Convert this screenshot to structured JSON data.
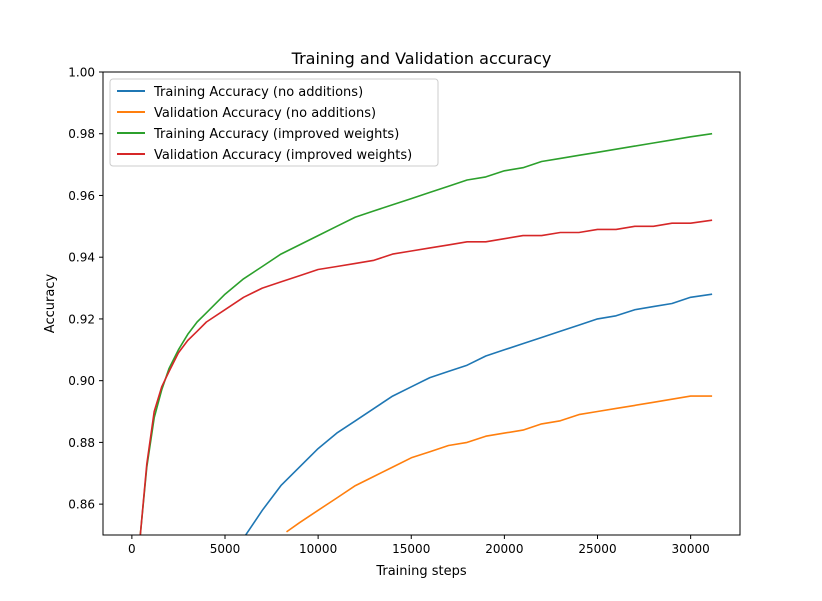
{
  "chart_data": {
    "type": "line",
    "title": "Training and Validation accuracy",
    "xlabel": "Training steps",
    "ylabel": "Accuracy",
    "xlim": [
      -1550,
      32650
    ],
    "ylim": [
      0.85,
      1.0
    ],
    "xticks": [
      0,
      5000,
      10000,
      15000,
      20000,
      25000,
      30000
    ],
    "xtick_labels": [
      "0",
      "5000",
      "10000",
      "15000",
      "20000",
      "25000",
      "30000"
    ],
    "yticks": [
      0.86,
      0.88,
      0.9,
      0.92,
      0.94,
      0.96,
      0.98,
      1.0
    ],
    "ytick_labels": [
      "0.86",
      "0.88",
      "0.90",
      "0.92",
      "0.94",
      "0.96",
      "0.98",
      "1.00"
    ],
    "grid": false,
    "legend_position": "upper-left",
    "series": [
      {
        "name": "Training Accuracy (no additions)",
        "color": "#1f77b4",
        "x": [
          6000,
          7000,
          8000,
          9000,
          10000,
          11000,
          12000,
          13000,
          14000,
          15000,
          16000,
          17000,
          18000,
          19000,
          20000,
          21000,
          22000,
          23000,
          24000,
          25000,
          26000,
          27000,
          28000,
          29000,
          30000,
          31150
        ],
        "y": [
          0.849,
          0.858,
          0.866,
          0.872,
          0.878,
          0.883,
          0.887,
          0.891,
          0.895,
          0.898,
          0.901,
          0.903,
          0.905,
          0.908,
          0.91,
          0.912,
          0.914,
          0.916,
          0.918,
          0.92,
          0.921,
          0.923,
          0.924,
          0.925,
          0.927,
          0.928
        ]
      },
      {
        "name": "Validation Accuracy (no additions)",
        "color": "#ff7f0e",
        "x": [
          8300,
          9000,
          10000,
          11000,
          12000,
          13000,
          14000,
          15000,
          16000,
          17000,
          18000,
          19000,
          20000,
          21000,
          22000,
          23000,
          24000,
          25000,
          26000,
          27000,
          28000,
          29000,
          30000,
          31150
        ],
        "y": [
          0.851,
          0.854,
          0.858,
          0.862,
          0.866,
          0.869,
          0.872,
          0.875,
          0.877,
          0.879,
          0.88,
          0.882,
          0.883,
          0.884,
          0.886,
          0.887,
          0.889,
          0.89,
          0.891,
          0.892,
          0.893,
          0.894,
          0.895,
          0.895
        ]
      },
      {
        "name": "Training Accuracy (improved weights)",
        "color": "#2ca02c",
        "x": [
          450,
          800,
          1200,
          1600,
          2000,
          2500,
          3000,
          3500,
          4000,
          5000,
          6000,
          7000,
          8000,
          9000,
          10000,
          11000,
          12000,
          13000,
          14000,
          15000,
          16000,
          17000,
          18000,
          19000,
          20000,
          21000,
          22000,
          23000,
          24000,
          25000,
          26000,
          27000,
          28000,
          29000,
          30000,
          31150
        ],
        "y": [
          0.85,
          0.872,
          0.888,
          0.897,
          0.904,
          0.91,
          0.915,
          0.919,
          0.922,
          0.928,
          0.933,
          0.937,
          0.941,
          0.944,
          0.947,
          0.95,
          0.953,
          0.955,
          0.957,
          0.959,
          0.961,
          0.963,
          0.965,
          0.966,
          0.968,
          0.969,
          0.971,
          0.972,
          0.973,
          0.974,
          0.975,
          0.976,
          0.977,
          0.978,
          0.979,
          0.98
        ]
      },
      {
        "name": "Validation Accuracy (improved weights)",
        "color": "#d62728",
        "x": [
          450,
          800,
          1200,
          1600,
          2000,
          2500,
          3000,
          3500,
          4000,
          5000,
          6000,
          7000,
          8000,
          9000,
          10000,
          11000,
          12000,
          13000,
          14000,
          15000,
          16000,
          17000,
          18000,
          19000,
          20000,
          21000,
          22000,
          23000,
          24000,
          25000,
          26000,
          27000,
          28000,
          29000,
          30000,
          31150
        ],
        "y": [
          0.85,
          0.873,
          0.89,
          0.898,
          0.903,
          0.909,
          0.913,
          0.916,
          0.919,
          0.923,
          0.927,
          0.93,
          0.932,
          0.934,
          0.936,
          0.937,
          0.938,
          0.939,
          0.941,
          0.942,
          0.943,
          0.944,
          0.945,
          0.945,
          0.946,
          0.947,
          0.947,
          0.948,
          0.948,
          0.949,
          0.949,
          0.95,
          0.95,
          0.951,
          0.951,
          0.952
        ]
      }
    ]
  }
}
